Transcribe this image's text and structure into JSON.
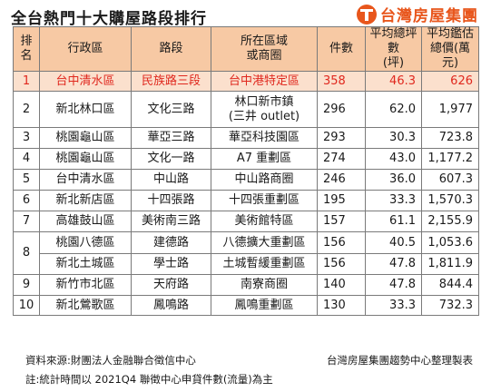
{
  "title": "全台熱門十大購屋路段排行",
  "brand": {
    "name": "台灣房屋集團",
    "logo": "taiwan-realty-logo",
    "color": "#e8561c"
  },
  "colors": {
    "header_bg": "#f7c9a4",
    "highlight_bg": "#fbe0cd",
    "highlight_text": "#e0281e"
  },
  "headers": {
    "rank": "排名",
    "district": "行政區",
    "road": "路段",
    "area": "所在區域或商圈",
    "count": "件數",
    "price": "平均總坪數(坪)",
    "total": "平均鑑估總價(萬元)"
  },
  "rows": [
    {
      "rank": "1",
      "district": "台中清水區",
      "road": "民族路三段",
      "area": "台中港特定區",
      "area_sub": "",
      "count": "358",
      "price": "46.3",
      "total": "626"
    },
    {
      "rank": "2",
      "district": "新北林口區",
      "road": "文化三路",
      "area": "林口新市鎮",
      "area_sub": "(三井 outlet)",
      "count": "296",
      "price": "62.0",
      "total": "1,977"
    },
    {
      "rank": "3",
      "district": "桃園龜山區",
      "road": "華亞三路",
      "area": "華亞科技園區",
      "area_sub": "",
      "count": "293",
      "price": "30.3",
      "total": "723.8"
    },
    {
      "rank": "4",
      "district": "桃園龜山區",
      "road": "文化一路",
      "area": "A7 重劃區",
      "area_sub": "",
      "count": "274",
      "price": "43.0",
      "total": "1,177.2"
    },
    {
      "rank": "5",
      "district": "台中清水區",
      "road": "中山路",
      "area": "中山路商圈",
      "area_sub": "",
      "count": "246",
      "price": "36.0",
      "total": "607.3"
    },
    {
      "rank": "6",
      "district": "新北新店區",
      "road": "十四張路",
      "area": "十四張重劃區",
      "area_sub": "",
      "count": "195",
      "price": "33.3",
      "total": "1,570.3"
    },
    {
      "rank": "7",
      "district": "高雄鼓山區",
      "road": "美術南三路",
      "area": "美術館特區",
      "area_sub": "",
      "count": "157",
      "price": "61.1",
      "total": "2,155.9"
    },
    {
      "rank": "8",
      "district": "桃園八德區",
      "road": "建德路",
      "area": "八德擴大重劃區",
      "area_sub": "",
      "count": "156",
      "price": "40.5",
      "total": "1,053.6"
    },
    {
      "rank": "",
      "district": "新北土城區",
      "road": "學士路",
      "area": "土城暫緩重劃區",
      "area_sub": "",
      "count": "156",
      "price": "47.8",
      "total": "1,811.9"
    },
    {
      "rank": "9",
      "district": "新竹市北區",
      "road": "天府路",
      "area": "南寮商圈",
      "area_sub": "",
      "count": "140",
      "price": "47.8",
      "total": "844.4"
    },
    {
      "rank": "10",
      "district": "新北鶯歌區",
      "road": "鳳鳴路",
      "area": "鳳鳴重劃區",
      "area_sub": "",
      "count": "130",
      "price": "33.3",
      "total": "732.3"
    }
  ],
  "footer": {
    "source": "資料來源:財團法人金融聯合徵信中心",
    "maker": "台灣房屋集團趨勢中心整理製表",
    "note": "註:統計時間以 2021Q4 聯徵中心申貸件數(流量)為主"
  }
}
